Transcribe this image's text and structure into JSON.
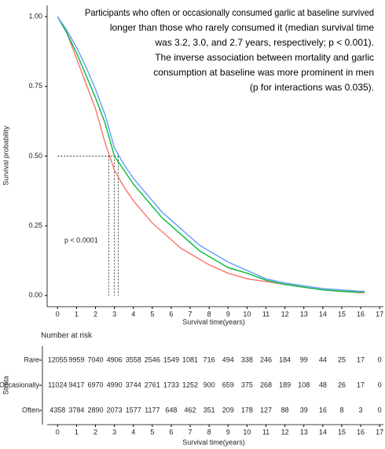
{
  "chart_data": {
    "type": "line",
    "annotation": [
      "Participants who often or occasionally consumed garlic at baseline survived",
      "longer than those who rarely consumed it (median survival time",
      "was 3.2, 3.0, and 2.7 years, respectively; p < 0.001).",
      "The inverse association between mortality and garlic",
      "consumption at baseline was more prominent in men",
      "(p for interactions was 0.035)."
    ],
    "pvalue_label": "p < 0.0001",
    "xlabel": "Survival time(years)",
    "ylabel": "Survival probability",
    "x": [
      0,
      0.5,
      1,
      1.5,
      2,
      2.5,
      3,
      3.5,
      4,
      4.5,
      5,
      5.5,
      6,
      6.5,
      7,
      7.5,
      8,
      9,
      10,
      11,
      12,
      13,
      14,
      15,
      16,
      16.2
    ],
    "series": [
      {
        "name": "Rare",
        "color": "#F8766D",
        "values": [
          1,
          0.94,
          0.85,
          0.76,
          0.67,
          0.55,
          0.45,
          0.39,
          0.34,
          0.3,
          0.26,
          0.23,
          0.2,
          0.17,
          0.15,
          0.13,
          0.11,
          0.08,
          0.06,
          0.05,
          0.04,
          0.03,
          0.02,
          0.015,
          0.01,
          0.01
        ]
      },
      {
        "name": "Occasionally",
        "color": "#00BA38",
        "values": [
          1,
          0.94,
          0.87,
          0.79,
          0.71,
          0.62,
          0.5,
          0.45,
          0.4,
          0.36,
          0.32,
          0.28,
          0.25,
          0.22,
          0.19,
          0.16,
          0.14,
          0.1,
          0.08,
          0.055,
          0.04,
          0.03,
          0.02,
          0.015,
          0.012,
          0.012
        ]
      },
      {
        "name": "Often",
        "color": "#619CFF",
        "values": [
          1,
          0.95,
          0.89,
          0.82,
          0.74,
          0.65,
          0.53,
          0.47,
          0.42,
          0.38,
          0.34,
          0.3,
          0.27,
          0.24,
          0.21,
          0.18,
          0.16,
          0.12,
          0.09,
          0.06,
          0.045,
          0.035,
          0.025,
          0.02,
          0.015,
          0.015
        ]
      }
    ],
    "median_lines": {
      "y": 0.5,
      "x": [
        2.7,
        3.0,
        3.2
      ]
    },
    "xlim": [
      -0.55,
      17.2
    ],
    "xticks": [
      0,
      1,
      2,
      3,
      4,
      5,
      6,
      7,
      8,
      9,
      10,
      11,
      12,
      13,
      14,
      15,
      16,
      17
    ],
    "ylim": [
      -0.04,
      1.04
    ],
    "yticks": [
      {
        "value": 0,
        "label": "0.00"
      },
      {
        "value": 0.25,
        "label": "0.25"
      },
      {
        "value": 0.5,
        "label": "0.50"
      },
      {
        "value": 0.75,
        "label": "0.75"
      },
      {
        "value": 1,
        "label": "1.00"
      }
    ],
    "risk_table": {
      "title": "Number at risk",
      "strata_label": "Strata",
      "xlabel": "Survival time(years)",
      "rows": [
        {
          "name": "Rare",
          "color": "#F8766D",
          "values": [
            12055,
            9959,
            7040,
            4906,
            3558,
            2546,
            1549,
            1081,
            716,
            494,
            338,
            246,
            184,
            99,
            44,
            25,
            17,
            0
          ]
        },
        {
          "name": "Occasionally",
          "color": "#00BA38",
          "values": [
            11024,
            9417,
            6970,
            4990,
            3744,
            2761,
            1733,
            1252,
            900,
            659,
            375,
            268,
            189,
            108,
            48,
            26,
            17,
            0
          ]
        },
        {
          "name": "Often",
          "color": "#619CFF",
          "values": [
            4358,
            3784,
            2890,
            2073,
            1577,
            1177,
            648,
            462,
            351,
            209,
            178,
            127,
            88,
            39,
            16,
            8,
            3,
            0
          ]
        }
      ]
    }
  }
}
